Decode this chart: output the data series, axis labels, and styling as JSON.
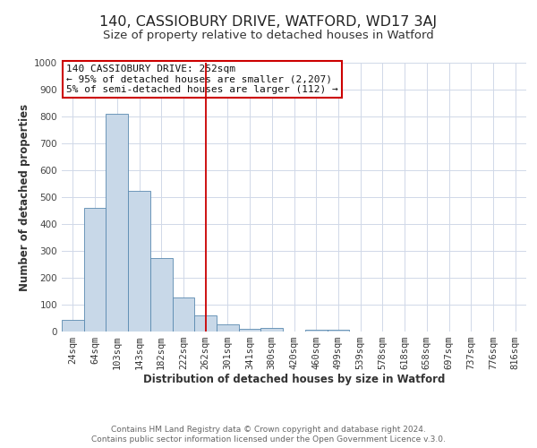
{
  "title": "140, CASSIOBURY DRIVE, WATFORD, WD17 3AJ",
  "subtitle": "Size of property relative to detached houses in Watford",
  "xlabel": "Distribution of detached houses by size in Watford",
  "ylabel": "Number of detached properties",
  "bar_labels": [
    "24sqm",
    "64sqm",
    "103sqm",
    "143sqm",
    "182sqm",
    "222sqm",
    "262sqm",
    "301sqm",
    "341sqm",
    "380sqm",
    "420sqm",
    "460sqm",
    "499sqm",
    "539sqm",
    "578sqm",
    "618sqm",
    "658sqm",
    "697sqm",
    "737sqm",
    "776sqm",
    "816sqm"
  ],
  "bar_heights": [
    45,
    460,
    810,
    525,
    272,
    127,
    60,
    27,
    10,
    12,
    0,
    8,
    8,
    0,
    0,
    0,
    0,
    0,
    0,
    0,
    0
  ],
  "bar_color": "#c8d8e8",
  "bar_edge_color": "#5a8ab0",
  "vline_x": 6,
  "vline_color": "#cc0000",
  "ylim": [
    0,
    1000
  ],
  "yticks": [
    0,
    100,
    200,
    300,
    400,
    500,
    600,
    700,
    800,
    900,
    1000
  ],
  "annotation_title": "140 CASSIOBURY DRIVE: 252sqm",
  "annotation_line1": "← 95% of detached houses are smaller (2,207)",
  "annotation_line2": "5% of semi-detached houses are larger (112) →",
  "annotation_box_color": "#ffffff",
  "annotation_box_edge_color": "#cc0000",
  "footer1": "Contains HM Land Registry data © Crown copyright and database right 2024.",
  "footer2": "Contains public sector information licensed under the Open Government Licence v.3.0.",
  "background_color": "#ffffff",
  "grid_color": "#d0d8e8",
  "title_fontsize": 11.5,
  "subtitle_fontsize": 9.5,
  "axis_label_fontsize": 8.5,
  "tick_fontsize": 7.5,
  "footer_fontsize": 6.5,
  "annotation_fontsize": 8.0
}
